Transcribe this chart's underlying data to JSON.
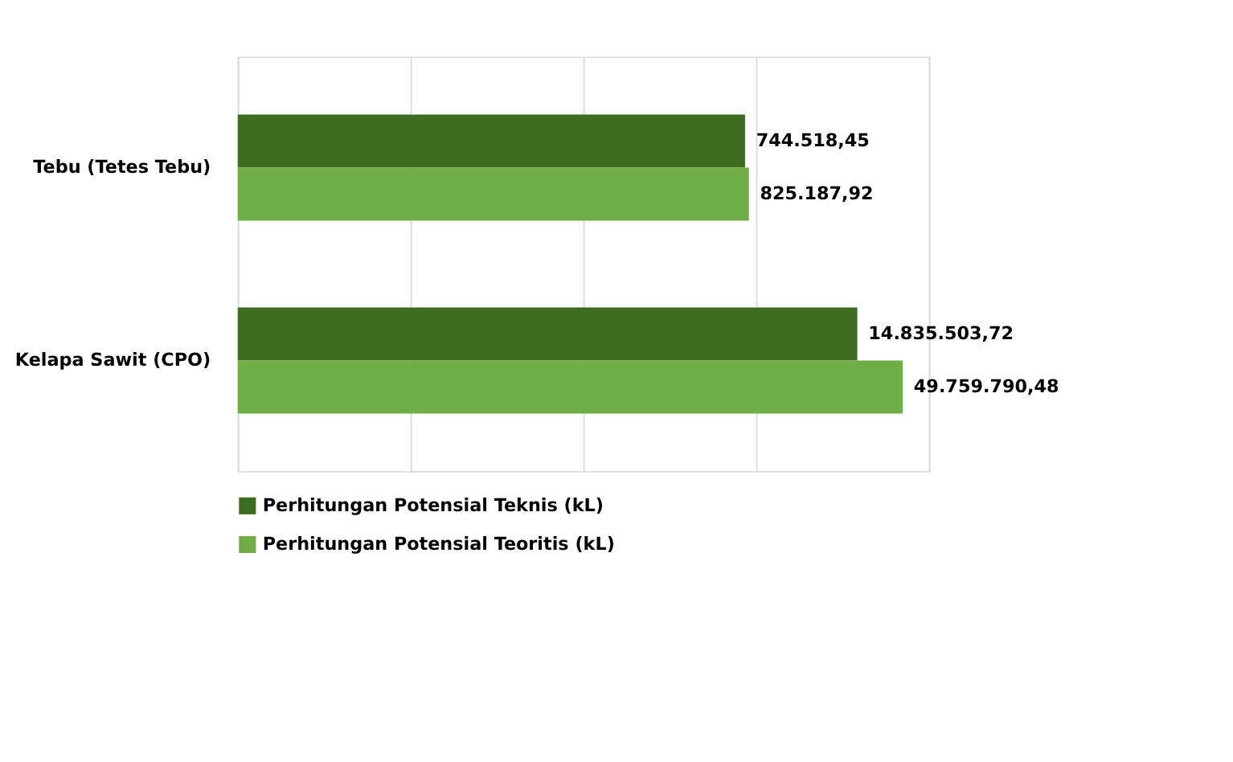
{
  "chart_data": {
    "type": "bar",
    "orientation": "horizontal",
    "log": "x",
    "xlim": [
      1,
      100000000
    ],
    "xticks": [
      {
        "value": 1,
        "label": null
      },
      {
        "value": 100,
        "label": null
      },
      {
        "value": 10000,
        "label": null
      },
      {
        "value": 1000000,
        "label": null
      },
      {
        "value": 100000000,
        "label": null
      }
    ],
    "categories": [
      "Tebu (Tetes Tebu)",
      "Kelapa Sawit (CPO)"
    ],
    "series": [
      {
        "name": "Perhitungan Potensial Teknis (kL)",
        "color": "#3d6b22",
        "values": [
          744518.45,
          14835503.72
        ],
        "value_labels": [
          "744.518,45",
          "14.835.503,72"
        ]
      },
      {
        "name": "Perhitungan Potensial Teoritis (kL)",
        "color": "#70ad47",
        "values": [
          825187.92,
          49759790.48
        ],
        "value_labels": [
          "825.187,92",
          "49.759.790,48"
        ]
      }
    ],
    "grid": "x",
    "legend": "bottom",
    "tick_labels": "y"
  }
}
